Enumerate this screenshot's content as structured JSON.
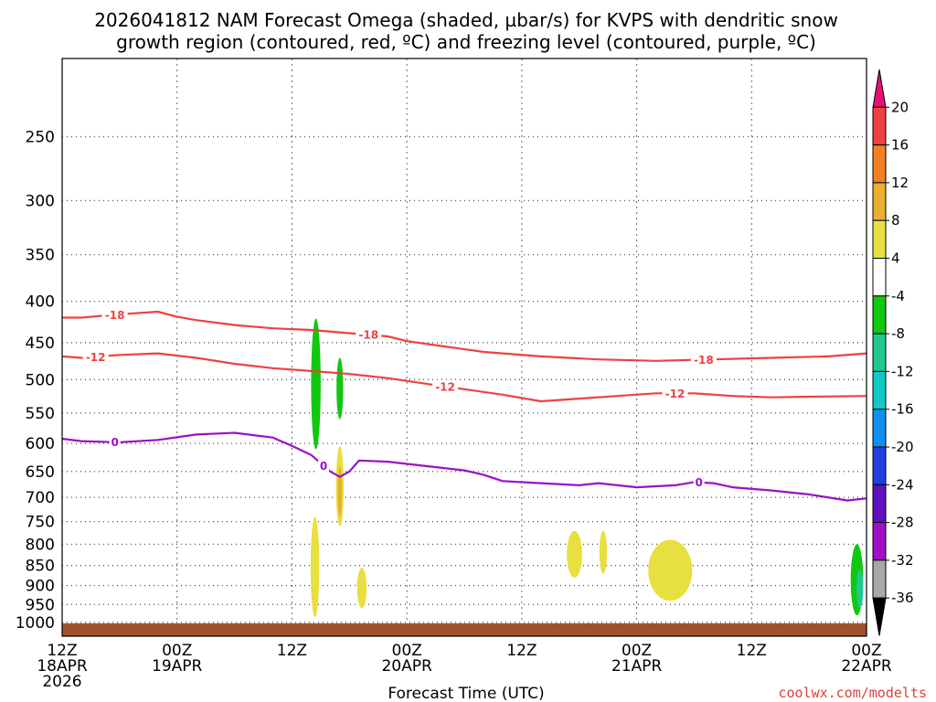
{
  "chart_data": {
    "type": "contour",
    "title_line1": "2026041812 NAM Forecast Omega (shaded, µbar/s) for KVPS with dendritic snow",
    "title_line2": "growth region (contoured, red, ºC) and freezing level (contoured, purple, ºC)",
    "xlabel": "Forecast Time (UTC)",
    "credit": "coolwx.com/modelts",
    "x_range_hours": [
      0,
      84
    ],
    "y_range_hpa": [
      200,
      1040
    ],
    "y_ticks": [
      "250",
      "300",
      "350",
      "400",
      "450",
      "500",
      "550",
      "600",
      "650",
      "700",
      "750",
      "800",
      "850",
      "900",
      "950",
      "1000"
    ],
    "x_ticks": [
      {
        "h": 0,
        "lines": [
          "12Z",
          "18APR",
          "2026"
        ]
      },
      {
        "h": 12,
        "lines": [
          "00Z",
          "19APR"
        ]
      },
      {
        "h": 24,
        "lines": [
          "12Z"
        ]
      },
      {
        "h": 36,
        "lines": [
          "00Z",
          "20APR"
        ]
      },
      {
        "h": 48,
        "lines": [
          "12Z"
        ]
      },
      {
        "h": 60,
        "lines": [
          "00Z",
          "21APR"
        ]
      },
      {
        "h": 72,
        "lines": [
          "12Z"
        ]
      },
      {
        "h": 84,
        "lines": [
          "00Z",
          "22APR"
        ]
      }
    ],
    "colorbar": {
      "labels": [
        "20",
        "16",
        "12",
        "8",
        "4",
        "-4",
        "-8",
        "-12",
        "-16",
        "-20",
        "-24",
        "-28",
        "-32",
        "-36"
      ],
      "colors": [
        "#e8106e",
        "#f04040",
        "#f08020",
        "#e8b030",
        "#e8e040",
        "#ffffff",
        "#10c810",
        "#20c890",
        "#10c8c8",
        "#1090f0",
        "#2040e0",
        "#6010c0",
        "#a010c8",
        "#a8a8a8",
        "#000000"
      ]
    },
    "contours": [
      {
        "name": "-18",
        "color": "#f04040",
        "labels": [
          {
            "h": 5.5,
            "text": "-18"
          },
          {
            "h": 32,
            "text": "-18"
          },
          {
            "h": 67,
            "text": "-18"
          }
        ],
        "points": [
          [
            0,
            419
          ],
          [
            2,
            419
          ],
          [
            6,
            415
          ],
          [
            10,
            412
          ],
          [
            12,
            418
          ],
          [
            14,
            422
          ],
          [
            18,
            428
          ],
          [
            22,
            432
          ],
          [
            26,
            434
          ],
          [
            30,
            438
          ],
          [
            34,
            442
          ],
          [
            36,
            448
          ],
          [
            40,
            455
          ],
          [
            44,
            462
          ],
          [
            50,
            468
          ],
          [
            56,
            472
          ],
          [
            62,
            474
          ],
          [
            68,
            472
          ],
          [
            74,
            470
          ],
          [
            80,
            468
          ],
          [
            84,
            464
          ]
        ]
      },
      {
        "name": "-12",
        "color": "#f04040",
        "labels": [
          {
            "h": 3.5,
            "text": "-12"
          },
          {
            "h": 40,
            "text": "-12"
          },
          {
            "h": 64,
            "text": "-12"
          }
        ],
        "points": [
          [
            0,
            468
          ],
          [
            2,
            470
          ],
          [
            6,
            466
          ],
          [
            10,
            464
          ],
          [
            14,
            470
          ],
          [
            18,
            478
          ],
          [
            22,
            484
          ],
          [
            26,
            488
          ],
          [
            30,
            492
          ],
          [
            34,
            498
          ],
          [
            38,
            506
          ],
          [
            42,
            514
          ],
          [
            46,
            522
          ],
          [
            50,
            532
          ],
          [
            54,
            528
          ],
          [
            58,
            524
          ],
          [
            62,
            520
          ],
          [
            66,
            520
          ],
          [
            70,
            524
          ],
          [
            74,
            526
          ],
          [
            78,
            525
          ],
          [
            84,
            524
          ]
        ]
      },
      {
        "name": "0",
        "color": "#9a10c8",
        "labels": [
          {
            "h": 5.5,
            "text": "0"
          },
          {
            "h": 27.3,
            "text": "0"
          },
          {
            "h": 66.5,
            "text": "0"
          }
        ],
        "points": [
          [
            0,
            592
          ],
          [
            2,
            596
          ],
          [
            6,
            598
          ],
          [
            10,
            594
          ],
          [
            14,
            585
          ],
          [
            18,
            582
          ],
          [
            20,
            586
          ],
          [
            22,
            590
          ],
          [
            24,
            604
          ],
          [
            26,
            620
          ],
          [
            28,
            650
          ],
          [
            29,
            660
          ],
          [
            30,
            650
          ],
          [
            31,
            630
          ],
          [
            34,
            632
          ],
          [
            38,
            640
          ],
          [
            42,
            648
          ],
          [
            44,
            656
          ],
          [
            46,
            668
          ],
          [
            50,
            672
          ],
          [
            54,
            676
          ],
          [
            56,
            672
          ],
          [
            60,
            680
          ],
          [
            64,
            676
          ],
          [
            66,
            670
          ],
          [
            68,
            672
          ],
          [
            70,
            680
          ],
          [
            74,
            686
          ],
          [
            78,
            694
          ],
          [
            82,
            706
          ],
          [
            84,
            702
          ]
        ]
      }
    ],
    "omega_regions": [
      {
        "name": "lift-strong-1",
        "color": "#10c810",
        "h": 26.5,
        "p_top": 420,
        "p_bottom": 610,
        "width_h": 1.0
      },
      {
        "name": "lift-strong-2",
        "color": "#10c810",
        "h": 29.0,
        "p_top": 470,
        "p_bottom": 560,
        "width_h": 0.7
      },
      {
        "name": "lift-strong-3",
        "color": "#10c810",
        "h": 83.0,
        "p_top": 800,
        "p_bottom": 980,
        "width_h": 1.3
      },
      {
        "name": "lift-core-3",
        "color": "#20c890",
        "h": 83.3,
        "p_top": 860,
        "p_bottom": 960,
        "width_h": 0.7
      },
      {
        "name": "sink-1",
        "color": "#e8e040",
        "h": 29.0,
        "p_top": 605,
        "p_bottom": 760,
        "width_h": 0.8
      },
      {
        "name": "sink-1-core",
        "color": "#e8b030",
        "h": 29.0,
        "p_top": 640,
        "p_bottom": 740,
        "width_h": 0.45
      },
      {
        "name": "sink-2",
        "color": "#e8e040",
        "h": 26.4,
        "p_top": 740,
        "p_bottom": 985,
        "width_h": 0.9
      },
      {
        "name": "sink-3",
        "color": "#e8e040",
        "h": 31.3,
        "p_top": 855,
        "p_bottom": 960,
        "width_h": 1.0
      },
      {
        "name": "sink-4",
        "color": "#e8e040",
        "h": 53.5,
        "p_top": 770,
        "p_bottom": 880,
        "width_h": 1.6
      },
      {
        "name": "sink-5",
        "color": "#e8e040",
        "h": 56.5,
        "p_top": 770,
        "p_bottom": 870,
        "width_h": 0.8
      },
      {
        "name": "sink-6",
        "color": "#e8e040",
        "h": 63.5,
        "p_top": 790,
        "p_bottom": 940,
        "width_h": 4.6
      }
    ]
  }
}
